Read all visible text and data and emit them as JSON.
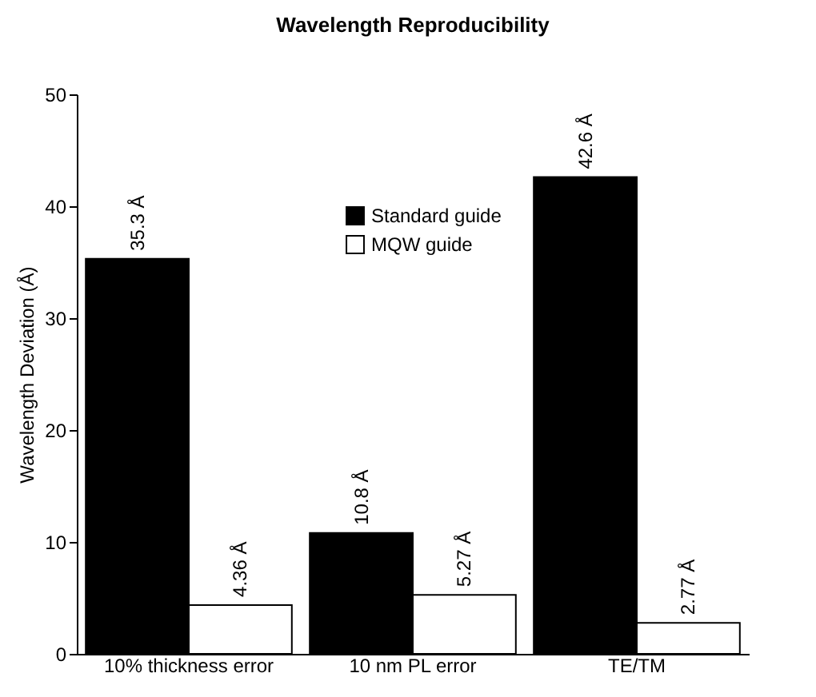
{
  "chart_data": {
    "type": "bar",
    "title": "Wavelength Reproducibility",
    "ylabel": "Wavelength Deviation (Å)",
    "categories": [
      "10% thickness error",
      "10 nm PL error",
      "TE/TM"
    ],
    "series": [
      {
        "name": "Standard guide",
        "color": "#000000",
        "values": [
          35.3,
          10.8,
          42.6
        ],
        "value_labels": [
          "35.3 Å",
          "10.8 Å",
          "42.6 Å"
        ]
      },
      {
        "name": "MQW guide",
        "color": "#ffffff",
        "values": [
          4.36,
          5.27,
          2.77
        ],
        "value_labels": [
          "4.36 Å",
          "5.27 Å",
          "2.77 Å"
        ]
      }
    ],
    "ylim": [
      0,
      50
    ],
    "yticks": [
      0,
      10,
      20,
      30,
      40,
      50
    ],
    "grid": false,
    "legend": "top"
  }
}
